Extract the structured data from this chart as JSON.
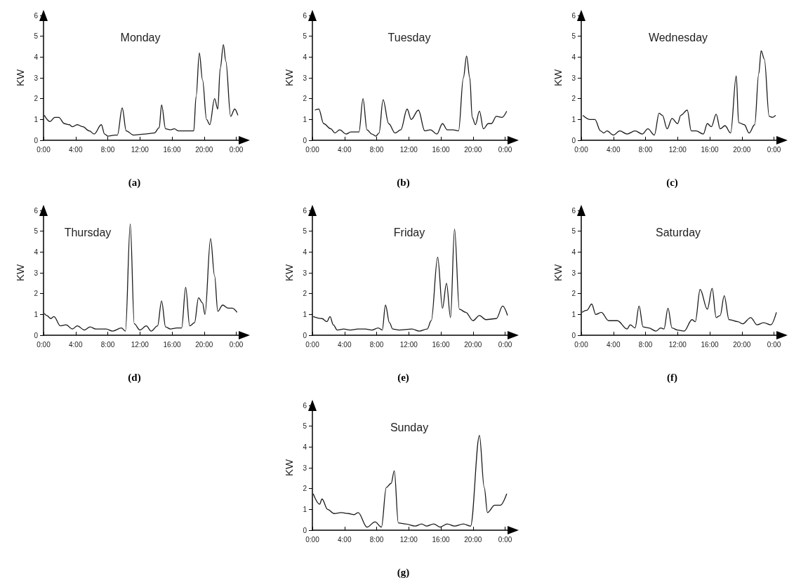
{
  "chart_data": [
    {
      "type": "line",
      "title": "Monday",
      "ylabel": "KW",
      "annotations": [
        "(a)"
      ],
      "color": "#1a1a1a",
      "marker": "none",
      "grid": false,
      "xlim": [
        0,
        25
      ],
      "ylim": [
        0,
        6
      ],
      "yticks": [
        0,
        1,
        2,
        3,
        4,
        5,
        6
      ],
      "xticks": [
        {
          "value": 0,
          "label": "0:00"
        },
        {
          "value": 4,
          "label": "4:00"
        },
        {
          "value": 8,
          "label": "8:00"
        },
        {
          "value": 12,
          "label": "12:00"
        },
        {
          "value": 16,
          "label": "16:00"
        },
        {
          "value": 20,
          "label": "20:00"
        },
        {
          "value": 24,
          "label": "0:00"
        }
      ],
      "x": [
        0.1,
        0.8,
        1.4,
        1.9,
        2.6,
        3.2,
        3.6,
        4.2,
        4.9,
        5.7,
        6.3,
        7.2,
        7.6,
        8.0,
        8.9,
        9.2,
        9.8,
        10.3,
        11.2,
        12.6,
        13.8,
        14.4,
        14.7,
        15.2,
        15.8,
        16.3,
        16.8,
        17.8,
        18.7,
        19.0,
        19.4,
        19.8,
        20.3,
        20.7,
        21.3,
        21.7,
        22.0,
        22.4,
        22.7,
        23.3,
        23.8,
        24.2
      ],
      "values": [
        1.2,
        0.9,
        1.1,
        1.1,
        0.8,
        0.75,
        0.65,
        0.75,
        0.65,
        0.45,
        0.3,
        0.75,
        0.3,
        0.2,
        0.25,
        0.25,
        1.55,
        0.45,
        0.25,
        0.3,
        0.35,
        0.6,
        1.7,
        0.55,
        0.5,
        0.55,
        0.45,
        0.45,
        0.45,
        2.1,
        4.2,
        2.9,
        1.0,
        0.75,
        2.0,
        1.5,
        3.45,
        4.6,
        3.8,
        1.15,
        1.5,
        1.2
      ]
    },
    {
      "type": "line",
      "title": "Tuesday",
      "ylabel": "KW",
      "annotations": [
        "(b)"
      ],
      "color": "#1a1a1a",
      "marker": "none",
      "grid": false,
      "xlim": [
        0,
        25
      ],
      "ylim": [
        0,
        6
      ],
      "yticks": [
        0,
        1,
        2,
        3,
        4,
        5,
        6
      ],
      "xticks": [
        {
          "value": 0,
          "label": "0:00"
        },
        {
          "value": 4,
          "label": "4:00"
        },
        {
          "value": 8,
          "label": "8:00"
        },
        {
          "value": 12,
          "label": "12:00"
        },
        {
          "value": 16,
          "label": "16:00"
        },
        {
          "value": 20,
          "label": "20:00"
        },
        {
          "value": 24,
          "label": "0:00"
        }
      ],
      "x": [
        0.3,
        0.8,
        1.4,
        2.3,
        2.8,
        3.4,
        4.2,
        4.8,
        5.8,
        6.3,
        6.8,
        7.4,
        7.9,
        8.3,
        8.8,
        9.5,
        10.3,
        11.0,
        11.8,
        12.3,
        13.2,
        14.0,
        14.7,
        15.5,
        16.2,
        16.8,
        17.5,
        18.2,
        18.8,
        19.2,
        19.6,
        19.9,
        20.3,
        20.8,
        21.3,
        21.9,
        22.3,
        22.9,
        23.6,
        24.2
      ],
      "values": [
        1.45,
        1.5,
        0.8,
        0.55,
        0.35,
        0.5,
        0.3,
        0.4,
        0.4,
        2.0,
        0.5,
        0.3,
        0.2,
        0.35,
        1.95,
        0.8,
        0.35,
        0.5,
        1.5,
        1.0,
        1.45,
        0.45,
        0.5,
        0.3,
        0.8,
        0.5,
        0.5,
        0.45,
        3.0,
        4.05,
        3.0,
        1.1,
        0.75,
        1.4,
        0.55,
        0.8,
        0.8,
        1.15,
        1.1,
        1.4
      ]
    },
    {
      "type": "line",
      "title": "Wednesday",
      "ylabel": "KW",
      "annotations": [
        "(c)"
      ],
      "color": "#1a1a1a",
      "marker": "none",
      "grid": false,
      "xlim": [
        0,
        25
      ],
      "ylim": [
        0,
        6
      ],
      "yticks": [
        0,
        1,
        2,
        3,
        4,
        5,
        6
      ],
      "xticks": [
        {
          "value": 0,
          "label": "0:00"
        },
        {
          "value": 4,
          "label": "4:00"
        },
        {
          "value": 8,
          "label": "8:00"
        },
        {
          "value": 12,
          "label": "12:00"
        },
        {
          "value": 16,
          "label": "16:00"
        },
        {
          "value": 20,
          "label": "20:00"
        },
        {
          "value": 24,
          "label": "0:00"
        }
      ],
      "x": [
        0.2,
        1.1,
        1.7,
        2.4,
        2.8,
        3.2,
        4.0,
        4.8,
        5.7,
        6.7,
        7.6,
        8.3,
        9.1,
        9.7,
        10.1,
        10.7,
        11.3,
        12.0,
        12.4,
        13.2,
        13.7,
        14.3,
        15.2,
        15.7,
        16.2,
        16.8,
        17.3,
        17.9,
        18.6,
        19.3,
        19.6,
        20.3,
        20.9,
        21.6,
        22.1,
        22.4,
        22.8,
        23.4,
        23.8,
        24.2
      ],
      "values": [
        1.2,
        1.0,
        1.0,
        0.45,
        0.35,
        0.45,
        0.25,
        0.45,
        0.3,
        0.45,
        0.3,
        0.55,
        0.25,
        1.3,
        1.2,
        0.55,
        1.05,
        0.8,
        1.2,
        1.45,
        0.45,
        0.45,
        0.3,
        0.8,
        0.65,
        1.25,
        0.55,
        0.7,
        0.35,
        3.1,
        0.85,
        0.75,
        0.35,
        0.75,
        3.2,
        4.3,
        3.9,
        1.15,
        1.1,
        1.2
      ]
    },
    {
      "type": "line",
      "title": "Thursday",
      "ylabel": "KW",
      "annotations": [
        "(d)"
      ],
      "color": "#1a1a1a",
      "marker": "none",
      "grid": false,
      "xlim": [
        0,
        25
      ],
      "ylim": [
        0,
        6
      ],
      "yticks": [
        0,
        1,
        2,
        3,
        4,
        5,
        6
      ],
      "xticks": [
        {
          "value": 0,
          "label": "0:00"
        },
        {
          "value": 4,
          "label": "4:00"
        },
        {
          "value": 8,
          "label": "8:00"
        },
        {
          "value": 12,
          "label": "12:00"
        },
        {
          "value": 16,
          "label": "16:00"
        },
        {
          "value": 20,
          "label": "20:00"
        },
        {
          "value": 24,
          "label": "0:00"
        }
      ],
      "x": [
        0.1,
        0.4,
        0.9,
        1.3,
        2.1,
        2.8,
        3.6,
        4.2,
        5.1,
        5.8,
        6.5,
        7.8,
        8.6,
        9.7,
        10.2,
        10.8,
        11.3,
        12.0,
        12.8,
        13.4,
        14.2,
        14.7,
        15.2,
        15.8,
        16.6,
        17.2,
        17.7,
        18.2,
        18.8,
        19.3,
        19.8,
        20.1,
        20.8,
        21.3,
        21.7,
        22.3,
        23.0,
        23.5,
        24.1
      ],
      "values": [
        1.05,
        0.95,
        0.8,
        0.9,
        0.45,
        0.5,
        0.3,
        0.45,
        0.25,
        0.4,
        0.3,
        0.3,
        0.2,
        0.35,
        0.2,
        5.35,
        0.55,
        0.25,
        0.45,
        0.2,
        0.45,
        1.65,
        0.4,
        0.3,
        0.35,
        0.35,
        2.3,
        0.45,
        0.6,
        1.8,
        1.55,
        1.0,
        4.65,
        2.85,
        1.15,
        1.45,
        1.3,
        1.3,
        1.1
      ]
    },
    {
      "type": "line",
      "title": "Friday",
      "ylabel": "KW",
      "annotations": [
        "(e)"
      ],
      "color": "#1a1a1a",
      "marker": "none",
      "grid": false,
      "xlim": [
        0,
        25
      ],
      "ylim": [
        0,
        6
      ],
      "yticks": [
        0,
        1,
        2,
        3,
        4,
        5,
        6
      ],
      "xticks": [
        {
          "value": 0,
          "label": "0:00"
        },
        {
          "value": 4,
          "label": "4:00"
        },
        {
          "value": 8,
          "label": "8:00"
        },
        {
          "value": 12,
          "label": "12:00"
        },
        {
          "value": 16,
          "label": "16:00"
        },
        {
          "value": 20,
          "label": "20:00"
        },
        {
          "value": 24,
          "label": "0:00"
        }
      ],
      "x": [
        0.1,
        1.2,
        1.8,
        2.2,
        2.6,
        3.1,
        3.9,
        4.7,
        5.7,
        6.6,
        7.4,
        8.2,
        8.7,
        9.1,
        9.6,
        10.0,
        10.8,
        12.4,
        13.3,
        14.3,
        14.8,
        15.6,
        16.2,
        16.7,
        17.2,
        17.7,
        18.3,
        19.1,
        20.0,
        20.8,
        21.6,
        22.9,
        23.7,
        24.3
      ],
      "values": [
        0.9,
        0.8,
        0.65,
        0.9,
        0.5,
        0.25,
        0.3,
        0.25,
        0.3,
        0.3,
        0.25,
        0.35,
        0.25,
        1.45,
        0.6,
        0.3,
        0.25,
        0.3,
        0.2,
        0.3,
        0.7,
        3.75,
        1.3,
        2.5,
        0.85,
        5.1,
        1.25,
        1.1,
        0.7,
        0.95,
        0.75,
        0.8,
        1.4,
        0.95
      ]
    },
    {
      "type": "line",
      "title": "Saturday",
      "ylabel": "KW",
      "annotations": [
        "(f)"
      ],
      "color": "#1a1a1a",
      "marker": "none",
      "grid": false,
      "xlim": [
        0,
        25
      ],
      "ylim": [
        0,
        6
      ],
      "yticks": [
        0,
        1,
        2,
        3,
        4,
        5,
        6
      ],
      "xticks": [
        {
          "value": 0,
          "label": "0:00"
        },
        {
          "value": 4,
          "label": "4:00"
        },
        {
          "value": 8,
          "label": "8:00"
        },
        {
          "value": 12,
          "label": "12:00"
        },
        {
          "value": 16,
          "label": "16:00"
        },
        {
          "value": 20,
          "label": "20:00"
        },
        {
          "value": 24,
          "label": "0:00"
        }
      ],
      "x": [
        0.1,
        0.7,
        1.3,
        1.8,
        2.5,
        3.4,
        4.5,
        5.7,
        6.1,
        6.7,
        7.2,
        7.7,
        8.4,
        9.3,
        9.9,
        10.3,
        10.8,
        11.3,
        12.0,
        12.8,
        13.8,
        14.2,
        14.8,
        15.7,
        16.3,
        16.8,
        17.3,
        17.8,
        18.4,
        19.5,
        20.1,
        21.1,
        21.9,
        22.7,
        23.6,
        24.3
      ],
      "values": [
        1.1,
        1.2,
        1.5,
        1.0,
        1.1,
        0.7,
        0.7,
        0.3,
        0.5,
        0.35,
        1.4,
        0.4,
        0.35,
        0.2,
        0.35,
        0.3,
        1.3,
        0.35,
        0.25,
        0.2,
        0.75,
        0.65,
        2.2,
        1.25,
        2.25,
        0.85,
        0.95,
        1.9,
        0.75,
        0.65,
        0.55,
        0.85,
        0.5,
        0.6,
        0.5,
        1.1
      ]
    },
    {
      "type": "line",
      "title": "Sunday",
      "ylabel": "KW",
      "annotations": [
        "(g)"
      ],
      "color": "#1a1a1a",
      "marker": "none",
      "grid": false,
      "xlim": [
        0,
        25
      ],
      "ylim": [
        0,
        6
      ],
      "yticks": [
        0,
        1,
        2,
        3,
        4,
        5,
        6
      ],
      "xticks": [
        {
          "value": 0,
          "label": "0:00"
        },
        {
          "value": 4,
          "label": "4:00"
        },
        {
          "value": 8,
          "label": "8:00"
        },
        {
          "value": 12,
          "label": "12:00"
        },
        {
          "value": 16,
          "label": "16:00"
        },
        {
          "value": 20,
          "label": "20:00"
        },
        {
          "value": 24,
          "label": "0:00"
        }
      ],
      "x": [
        0.1,
        0.9,
        1.2,
        1.9,
        2.7,
        3.6,
        4.5,
        5.2,
        5.7,
        6.8,
        7.8,
        8.6,
        9.2,
        9.8,
        10.2,
        10.7,
        11.6,
        12.8,
        13.6,
        14.2,
        15.1,
        15.9,
        16.8,
        17.7,
        18.8,
        19.7,
        20.8,
        21.4,
        21.8,
        22.7,
        23.4,
        24.2
      ],
      "values": [
        1.75,
        1.25,
        1.5,
        1.0,
        0.8,
        0.85,
        0.8,
        0.75,
        0.85,
        0.15,
        0.4,
        0.15,
        2.05,
        2.25,
        2.85,
        0.35,
        0.3,
        0.2,
        0.3,
        0.2,
        0.3,
        0.15,
        0.3,
        0.2,
        0.3,
        0.2,
        4.55,
        2.05,
        0.85,
        1.2,
        1.2,
        1.75
      ]
    }
  ]
}
